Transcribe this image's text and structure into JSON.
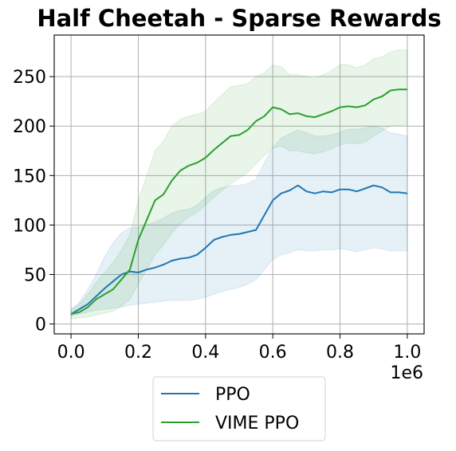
{
  "chart_data": {
    "type": "line",
    "title": "Half Cheetah - Sparse Rewards",
    "xlabel": "",
    "ylabel": "",
    "x_multiplier_label": "1e6",
    "xlim": [
      -0.05,
      1.05
    ],
    "ylim": [
      -10,
      292
    ],
    "xticks": [
      0.0,
      0.2,
      0.4,
      0.6,
      0.8,
      1.0
    ],
    "xtick_labels": [
      "0.0",
      "0.2",
      "0.4",
      "0.6",
      "0.8",
      "1.0"
    ],
    "yticks": [
      0,
      50,
      100,
      150,
      200,
      250
    ],
    "ytick_labels": [
      "0",
      "50",
      "100",
      "150",
      "200",
      "250"
    ],
    "grid": true,
    "legend_position": "below-center",
    "x": [
      0.0,
      0.025,
      0.05,
      0.075,
      0.1,
      0.125,
      0.15,
      0.175,
      0.2,
      0.225,
      0.25,
      0.275,
      0.3,
      0.325,
      0.35,
      0.375,
      0.4,
      0.425,
      0.45,
      0.475,
      0.5,
      0.525,
      0.55,
      0.575,
      0.6,
      0.625,
      0.65,
      0.675,
      0.7,
      0.725,
      0.75,
      0.775,
      0.8,
      0.825,
      0.85,
      0.875,
      0.9,
      0.925,
      0.95,
      0.975,
      1.0
    ],
    "series": [
      {
        "name": "PPO",
        "color": "#1f77b4",
        "values": [
          10,
          15,
          20,
          28,
          36,
          43,
          50,
          53,
          52,
          55,
          57,
          60,
          64,
          66,
          67,
          70,
          77,
          85,
          88,
          90,
          91,
          93,
          95,
          110,
          125,
          132,
          135,
          140,
          134,
          132,
          134,
          133,
          136,
          136,
          134,
          137,
          140,
          138,
          133,
          133,
          132
        ],
        "lower": [
          8,
          10,
          12,
          14,
          15,
          16,
          17,
          19,
          20,
          21,
          22,
          23,
          24,
          24,
          24,
          25,
          27,
          30,
          33,
          35,
          37,
          40,
          45,
          55,
          65,
          70,
          72,
          75,
          74,
          74,
          75,
          75,
          76,
          75,
          73,
          75,
          77,
          76,
          74,
          74,
          74
        ],
        "upper": [
          14,
          22,
          35,
          50,
          68,
          82,
          92,
          97,
          98,
          100,
          103,
          107,
          112,
          115,
          116,
          120,
          128,
          135,
          138,
          140,
          140,
          142,
          146,
          163,
          178,
          188,
          192,
          196,
          193,
          190,
          190,
          191,
          194,
          197,
          197,
          198,
          200,
          198,
          193,
          192,
          190
        ]
      },
      {
        "name": "VIME PPO",
        "color": "#2ca02c",
        "values": [
          10,
          12,
          17,
          25,
          30,
          35,
          45,
          55,
          85,
          105,
          125,
          131,
          145,
          155,
          160,
          163,
          168,
          176,
          183,
          190,
          191,
          196,
          205,
          210,
          219,
          217,
          212,
          213,
          210,
          209,
          212,
          215,
          219,
          220,
          219,
          221,
          227,
          230,
          236,
          237,
          237
        ],
        "lower": [
          5,
          6,
          7,
          9,
          11,
          13,
          18,
          25,
          40,
          55,
          70,
          80,
          92,
          101,
          108,
          113,
          120,
          128,
          135,
          142,
          147,
          153,
          162,
          170,
          178,
          180,
          175,
          175,
          173,
          172,
          174,
          177,
          181,
          183,
          182,
          184,
          190,
          195,
          200,
          201,
          201
        ],
        "upper": [
          15,
          20,
          30,
          42,
          52,
          62,
          75,
          90,
          125,
          150,
          175,
          185,
          200,
          207,
          210,
          212,
          215,
          224,
          232,
          240,
          241,
          243,
          250,
          254,
          262,
          260,
          252,
          252,
          250,
          248,
          252,
          256,
          262,
          262,
          259,
          262,
          268,
          270,
          275,
          277,
          277
        ]
      }
    ]
  }
}
